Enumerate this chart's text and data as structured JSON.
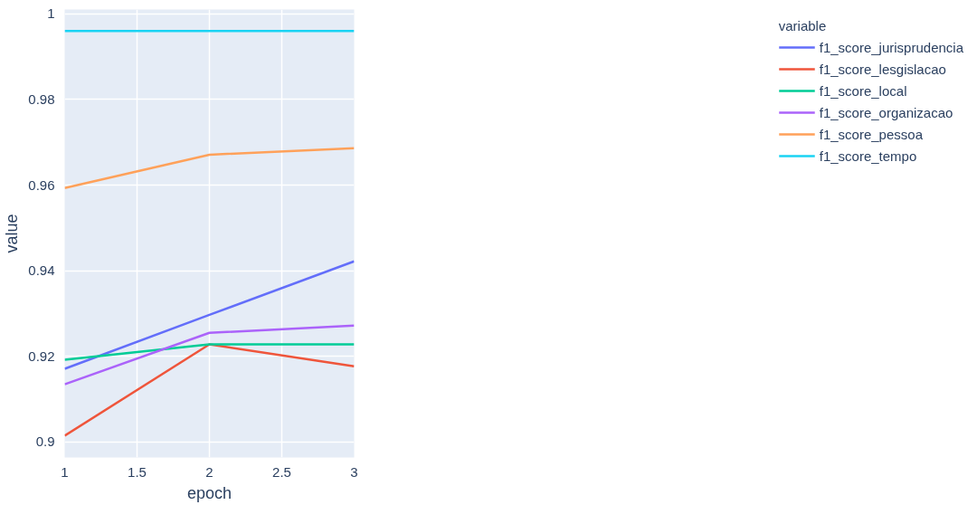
{
  "chart_data": {
    "type": "line",
    "xlabel": "epoch",
    "ylabel": "value",
    "legend_title": "variable",
    "x": [
      1,
      2,
      3
    ],
    "series": [
      {
        "name": "f1_score_jurisprudencia",
        "color": "#636efa",
        "values": [
          0.9171,
          0.9297,
          0.9422
        ]
      },
      {
        "name": "f1_score_lesgislacao",
        "color": "#ef553b",
        "values": [
          0.9015,
          0.9228,
          0.9177
        ]
      },
      {
        "name": "f1_score_local",
        "color": "#00cc96",
        "values": [
          0.9192,
          0.9228,
          0.9228
        ]
      },
      {
        "name": "f1_score_organizacao",
        "color": "#ab63fa",
        "values": [
          0.9135,
          0.9255,
          0.9272
        ]
      },
      {
        "name": "f1_score_pessoa",
        "color": "#ffa15a",
        "values": [
          0.9593,
          0.9671,
          0.9686
        ]
      },
      {
        "name": "f1_score_tempo",
        "color": "#19d3f3",
        "values": [
          0.996,
          0.996,
          0.996
        ]
      }
    ],
    "xlim": [
      1,
      3
    ],
    "xticks": [
      1,
      1.5,
      2,
      2.5,
      3
    ],
    "ylim": [
      0.8964,
      1.001
    ],
    "yticks": [
      0.9,
      0.92,
      0.94,
      0.96,
      0.98,
      1
    ],
    "grid": true,
    "legend": "top right",
    "marker": "none",
    "line_style": "solid"
  }
}
